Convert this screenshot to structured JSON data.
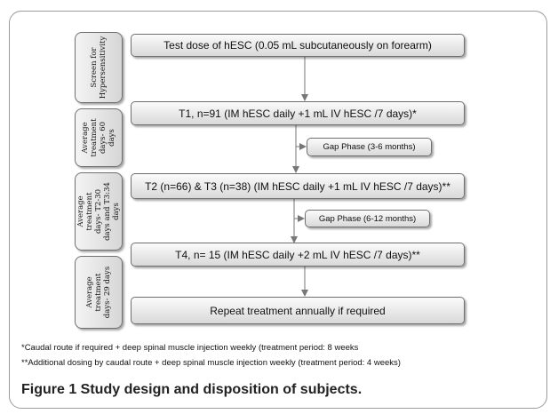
{
  "figure": {
    "side_labels": [
      "Screen for\nHypersensitivity",
      "Average\ntreatment\ndays- 60\ndays",
      "Average\ntreatment\ndays- T2-30\ndays and T3:34\ndays",
      "Average\ntreatment\ndays- 29 days"
    ],
    "steps": [
      "Test dose of hESC (0.05 mL subcutaneously on forearm)",
      "T1, n=91 (IM hESC daily +1 mL IV hESC /7 days)*",
      "T2 (n=66) & T3 (n=38) (IM hESC daily +1 mL IV hESC /7 days)**",
      "T4, n= 15 (IM hESC daily +2 mL IV hESC /7 days)**",
      "Repeat treatment annually if required"
    ],
    "gap_phases": [
      "Gap Phase (3-6 months)",
      "Gap Phase (6-12 months)"
    ],
    "footnotes": [
      "*Caudal route if required + deep spinal muscle injection weekly (treatment period: 8 weeks",
      "**Additional dosing by caudal route + deep spinal muscle injection weekly (treatment period: 4 weeks)"
    ]
  },
  "caption": "Figure 1 Study design and disposition of subjects."
}
